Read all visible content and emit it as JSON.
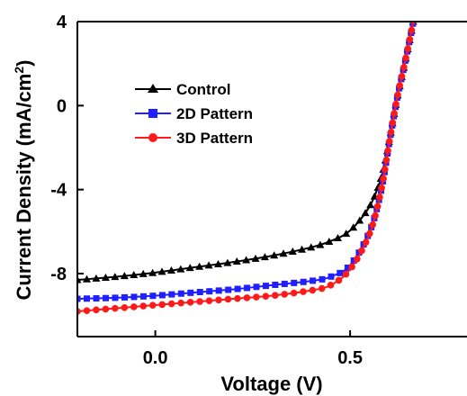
{
  "chart_data": {
    "type": "line",
    "title": "",
    "xlabel": "Voltage (V)",
    "ylabel": "Current Density (mA/cm",
    "ylabel_sup": "2",
    "ylabel_close": ")",
    "xlim": [
      -0.2,
      0.8
    ],
    "ylim": [
      -11,
      4
    ],
    "xticks": [
      0.0,
      0.5
    ],
    "xtick_labels": [
      "0.0",
      "0.5"
    ],
    "yticks": [
      -8,
      -4,
      0,
      4
    ],
    "ytick_labels": [
      "-8",
      "-4",
      "0",
      "4"
    ],
    "legend_position": "top-left",
    "grid": false,
    "series": [
      {
        "name": "Control",
        "color": "#000000",
        "marker": "triangle",
        "x": [
          -0.2,
          -0.1,
          0.0,
          0.1,
          0.2,
          0.3,
          0.4,
          0.45,
          0.5,
          0.55,
          0.58,
          0.6,
          0.62,
          0.64,
          0.66,
          0.67
        ],
        "y": [
          -8.3,
          -8.15,
          -7.95,
          -7.7,
          -7.45,
          -7.15,
          -6.75,
          -6.45,
          -5.95,
          -4.8,
          -3.4,
          -1.7,
          0.3,
          2.0,
          3.8,
          5.0
        ]
      },
      {
        "name": "2D Pattern",
        "color": "#1f1fff",
        "marker": "square",
        "x": [
          -0.2,
          -0.1,
          0.0,
          0.1,
          0.2,
          0.3,
          0.4,
          0.45,
          0.5,
          0.55,
          0.58,
          0.6,
          0.62,
          0.64,
          0.66,
          0.67
        ],
        "y": [
          -9.2,
          -9.15,
          -9.05,
          -8.9,
          -8.75,
          -8.55,
          -8.35,
          -8.15,
          -7.6,
          -6.0,
          -4.0,
          -1.8,
          0.3,
          2.0,
          3.8,
          5.0
        ]
      },
      {
        "name": "3D Pattern",
        "color": "#ff1a1a",
        "marker": "circle",
        "x": [
          -0.2,
          -0.1,
          0.0,
          0.1,
          0.2,
          0.3,
          0.4,
          0.45,
          0.5,
          0.55,
          0.58,
          0.6,
          0.62,
          0.64,
          0.66,
          0.67
        ],
        "y": [
          -9.8,
          -9.65,
          -9.5,
          -9.35,
          -9.2,
          -9.05,
          -8.8,
          -8.55,
          -7.8,
          -6.1,
          -4.0,
          -1.8,
          0.3,
          2.0,
          3.8,
          5.0
        ]
      }
    ]
  }
}
